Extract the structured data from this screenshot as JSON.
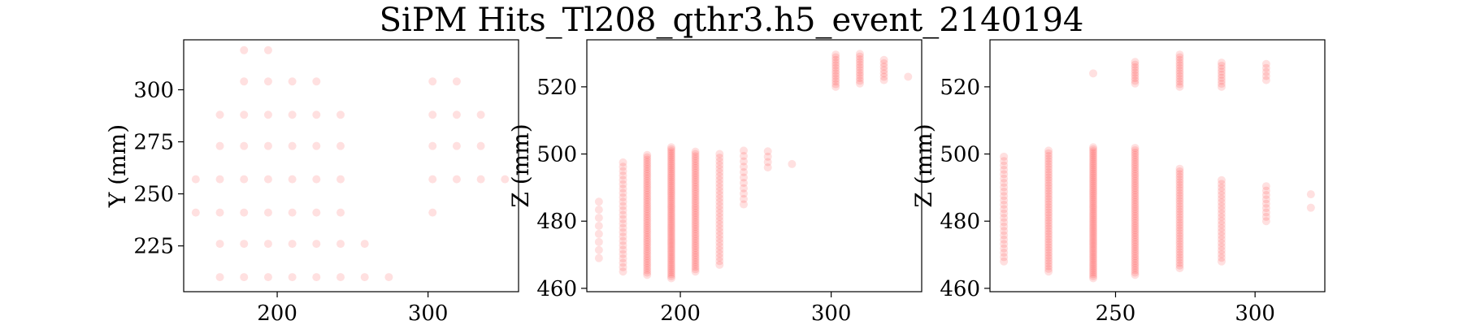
{
  "figure": {
    "title": "SiPM Hits_Tl208_qthr3.h5_event_2140194"
  },
  "chart_data": [
    {
      "type": "scatter",
      "xlabel": "",
      "ylabel": "Y (mm)",
      "xlim": [
        138,
        360
      ],
      "ylim": [
        203,
        324
      ],
      "xticks": [
        200,
        300
      ],
      "yticks": [
        225,
        250,
        275,
        300
      ],
      "marker_color": "#ff0000",
      "columns": [
        {
          "x": 146,
          "values": [
            241,
            257
          ]
        },
        {
          "x": 162,
          "values": [
            210,
            226,
            241,
            257,
            273,
            288
          ]
        },
        {
          "x": 178,
          "values": [
            210,
            226,
            241,
            257,
            273,
            288,
            304,
            319
          ]
        },
        {
          "x": 194,
          "values": [
            210,
            226,
            241,
            257,
            273,
            288,
            304,
            319
          ]
        },
        {
          "x": 210,
          "values": [
            210,
            226,
            241,
            257,
            273,
            288,
            304
          ]
        },
        {
          "x": 226,
          "values": [
            210,
            226,
            241,
            257,
            273,
            288,
            304
          ]
        },
        {
          "x": 242,
          "values": [
            210,
            226,
            241,
            257,
            273,
            288
          ]
        },
        {
          "x": 258,
          "values": [
            210,
            226
          ]
        },
        {
          "x": 274,
          "values": [
            210
          ]
        },
        {
          "x": 303,
          "values": [
            241,
            257,
            273,
            288,
            304
          ]
        },
        {
          "x": 319,
          "values": [
            257,
            273,
            288,
            304
          ]
        },
        {
          "x": 335,
          "values": [
            257,
            273,
            288
          ]
        },
        {
          "x": 351,
          "values": [
            257
          ]
        }
      ]
    },
    {
      "type": "scatter",
      "xlabel": "",
      "ylabel": "Z (mm)",
      "xlim": [
        138,
        360
      ],
      "ylim": [
        459,
        534
      ],
      "xticks": [
        200,
        300
      ],
      "yticks": [
        460,
        480,
        500,
        520
      ],
      "marker_color": "#ff0000",
      "columns": [
        {
          "x": 146,
          "range": [
            469,
            488
          ],
          "step": 2.4
        },
        {
          "x": 162,
          "range": [
            465,
            498
          ],
          "step": 1.3
        },
        {
          "x": 178,
          "range": [
            464,
            500
          ],
          "step": 0.7
        },
        {
          "x": 194,
          "range": [
            463,
            502
          ],
          "step": 0.6
        },
        {
          "x": 210,
          "range": [
            465,
            501
          ],
          "step": 0.7
        },
        {
          "x": 226,
          "range": [
            467,
            500
          ],
          "step": 1.1
        },
        {
          "x": 242,
          "range": [
            485,
            501
          ],
          "step": 1.6
        },
        {
          "x": 258,
          "range": [
            496,
            501
          ],
          "step": 1.6
        },
        {
          "x": 274,
          "range": [
            497,
            497
          ],
          "step": 1
        },
        {
          "x": 303,
          "range": [
            520,
            530
          ],
          "step": 0.8
        },
        {
          "x": 319,
          "range": [
            521,
            530
          ],
          "step": 0.8
        },
        {
          "x": 335,
          "range": [
            522,
            528
          ],
          "step": 1.0
        },
        {
          "x": 351,
          "range": [
            523,
            523
          ],
          "step": 1
        }
      ]
    },
    {
      "type": "scatter",
      "xlabel": "",
      "ylabel": "Z (mm)",
      "xlim": [
        205,
        325
      ],
      "ylim": [
        459,
        534
      ],
      "xticks": [
        250,
        300
      ],
      "yticks": [
        460,
        480,
        500,
        520
      ],
      "marker_color": "#ff0000",
      "columns": [
        {
          "x": 210,
          "range": [
            468,
            500
          ],
          "step": 1.3
        },
        {
          "x": 226,
          "range": [
            465,
            501
          ],
          "step": 0.8
        },
        {
          "x": 242,
          "range": [
            463,
            502
          ],
          "step": 0.6
        },
        {
          "x": 242,
          "range": [
            524,
            524
          ],
          "step": 1
        },
        {
          "x": 257,
          "range": [
            464,
            502
          ],
          "step": 0.7
        },
        {
          "x": 257,
          "range": [
            521,
            528
          ],
          "step": 0.8
        },
        {
          "x": 273,
          "range": [
            466,
            496
          ],
          "step": 0.8
        },
        {
          "x": 273,
          "range": [
            520,
            530
          ],
          "step": 0.8
        },
        {
          "x": 288,
          "range": [
            468,
            493
          ],
          "step": 1.1
        },
        {
          "x": 288,
          "range": [
            520,
            528
          ],
          "step": 0.9
        },
        {
          "x": 304,
          "range": [
            480,
            491
          ],
          "step": 1.3
        },
        {
          "x": 304,
          "range": [
            522,
            527
          ],
          "step": 1.2
        },
        {
          "x": 320,
          "range": [
            484,
            488
          ],
          "step": 4
        }
      ]
    }
  ]
}
